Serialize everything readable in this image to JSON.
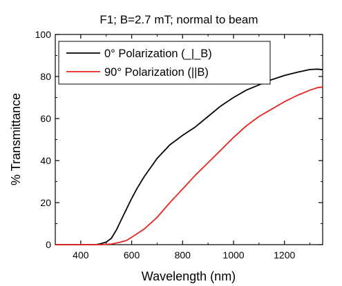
{
  "chart_data": {
    "type": "line",
    "title": "F1; B=2.7 mT; normal to beam",
    "xlabel": "Wavelength (nm)",
    "ylabel": "% Transmittance",
    "xlim": [
      300,
      1350
    ],
    "ylim": [
      0,
      100
    ],
    "xticks": [
      400,
      600,
      800,
      1000,
      1200
    ],
    "yticks": [
      0,
      20,
      40,
      60,
      80,
      100
    ],
    "legend_position": "top-left",
    "grid": false,
    "series": [
      {
        "name": "0° Polarization (_|_B)",
        "color": "#000000",
        "points": [
          [
            300,
            0
          ],
          [
            400,
            0
          ],
          [
            460,
            0
          ],
          [
            480,
            0.5
          ],
          [
            500,
            1.2
          ],
          [
            520,
            3
          ],
          [
            540,
            7
          ],
          [
            560,
            12
          ],
          [
            580,
            17
          ],
          [
            600,
            22
          ],
          [
            620,
            26.5
          ],
          [
            650,
            32.5
          ],
          [
            700,
            41
          ],
          [
            750,
            47.5
          ],
          [
            800,
            52
          ],
          [
            850,
            56
          ],
          [
            900,
            61
          ],
          [
            950,
            66
          ],
          [
            1000,
            70
          ],
          [
            1050,
            73.5
          ],
          [
            1100,
            76
          ],
          [
            1150,
            78.5
          ],
          [
            1200,
            80.5
          ],
          [
            1250,
            82
          ],
          [
            1300,
            83.3
          ],
          [
            1330,
            83.5
          ],
          [
            1350,
            83.2
          ]
        ]
      },
      {
        "name": "90° Polarization (||B)",
        "color": "#e8231d",
        "points": [
          [
            300,
            0
          ],
          [
            400,
            0
          ],
          [
            480,
            0
          ],
          [
            520,
            0.3
          ],
          [
            550,
            1
          ],
          [
            580,
            2
          ],
          [
            600,
            3.5
          ],
          [
            650,
            7.5
          ],
          [
            700,
            13
          ],
          [
            750,
            20
          ],
          [
            800,
            26.5
          ],
          [
            850,
            33
          ],
          [
            900,
            39
          ],
          [
            950,
            45
          ],
          [
            1000,
            51
          ],
          [
            1050,
            56.5
          ],
          [
            1100,
            61
          ],
          [
            1150,
            64.5
          ],
          [
            1200,
            68
          ],
          [
            1250,
            71
          ],
          [
            1300,
            73.5
          ],
          [
            1330,
            74.7
          ],
          [
            1350,
            75
          ]
        ]
      }
    ]
  }
}
